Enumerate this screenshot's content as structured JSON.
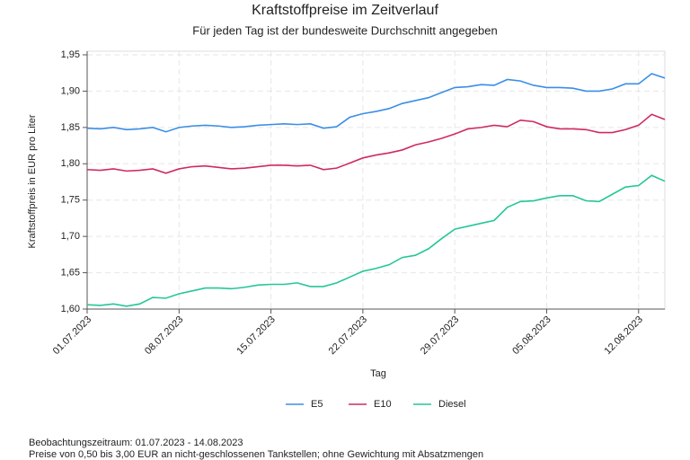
{
  "chart_data": {
    "type": "line",
    "title": "Kraftstoffpreise im Zeitverlauf",
    "subtitle": "Für jeden Tag ist der bundesweite Durchschnitt angegeben",
    "x_label": "Tag",
    "y_label": "Kraftstoffpreis in EUR pro Liter",
    "notes": [
      "Beobachtungszeitraum: 01.07.2023 - 14.08.2023",
      "Preise von 0,50 bis 3,00 EUR an nicht-geschlossenen Tankstellen; ohne Gewichtung mit Absatzmengen"
    ],
    "x": [
      "01.07.2023",
      "02.07.2023",
      "03.07.2023",
      "04.07.2023",
      "05.07.2023",
      "06.07.2023",
      "07.07.2023",
      "08.07.2023",
      "09.07.2023",
      "10.07.2023",
      "11.07.2023",
      "12.07.2023",
      "13.07.2023",
      "14.07.2023",
      "15.07.2023",
      "16.07.2023",
      "17.07.2023",
      "18.07.2023",
      "19.07.2023",
      "20.07.2023",
      "21.07.2023",
      "22.07.2023",
      "23.07.2023",
      "24.07.2023",
      "25.07.2023",
      "26.07.2023",
      "27.07.2023",
      "28.07.2023",
      "29.07.2023",
      "30.07.2023",
      "31.07.2023",
      "01.08.2023",
      "02.08.2023",
      "03.08.2023",
      "04.08.2023",
      "05.08.2023",
      "06.08.2023",
      "07.08.2023",
      "08.08.2023",
      "09.08.2023",
      "10.08.2023",
      "11.08.2023",
      "12.08.2023",
      "13.08.2023",
      "14.08.2023"
    ],
    "xticks": [
      "01.07.2023",
      "08.07.2023",
      "15.07.2023",
      "22.07.2023",
      "29.07.2023",
      "05.08.2023",
      "12.08.2023"
    ],
    "ylim": [
      1.6,
      1.95
    ],
    "yticks": [
      {
        "value": 1.6,
        "label": "1,60"
      },
      {
        "value": 1.65,
        "label": "1,65"
      },
      {
        "value": 1.7,
        "label": "1,70"
      },
      {
        "value": 1.75,
        "label": "1,75"
      },
      {
        "value": 1.8,
        "label": "1,80"
      },
      {
        "value": 1.85,
        "label": "1,85"
      },
      {
        "value": 1.9,
        "label": "1,90"
      },
      {
        "value": 1.95,
        "label": "1,95"
      }
    ],
    "grid": true,
    "legend": "bottom",
    "series": [
      {
        "name": "E5",
        "color": "#3b8ee6",
        "values": [
          1.849,
          1.848,
          1.85,
          1.847,
          1.848,
          1.85,
          1.844,
          1.85,
          1.852,
          1.853,
          1.852,
          1.85,
          1.851,
          1.853,
          1.854,
          1.855,
          1.854,
          1.855,
          1.849,
          1.851,
          1.864,
          1.869,
          1.872,
          1.876,
          1.883,
          1.887,
          1.891,
          1.898,
          1.905,
          1.906,
          1.909,
          1.908,
          1.916,
          1.914,
          1.908,
          1.905,
          1.905,
          1.904,
          1.9,
          1.9,
          1.903,
          1.91,
          1.91,
          1.924,
          1.918
        ]
      },
      {
        "name": "E10",
        "color": "#cf2a62",
        "values": [
          1.792,
          1.791,
          1.793,
          1.79,
          1.791,
          1.793,
          1.787,
          1.793,
          1.796,
          1.797,
          1.795,
          1.793,
          1.794,
          1.796,
          1.798,
          1.798,
          1.797,
          1.798,
          1.792,
          1.794,
          1.801,
          1.808,
          1.812,
          1.815,
          1.819,
          1.826,
          1.83,
          1.835,
          1.841,
          1.848,
          1.85,
          1.853,
          1.851,
          1.86,
          1.858,
          1.851,
          1.848,
          1.848,
          1.847,
          1.843,
          1.843,
          1.847,
          1.853,
          1.868,
          1.861
        ]
      },
      {
        "name": "Diesel",
        "color": "#26c699",
        "values": [
          1.606,
          1.605,
          1.607,
          1.604,
          1.607,
          1.616,
          1.615,
          1.621,
          1.625,
          1.629,
          1.629,
          1.628,
          1.63,
          1.633,
          1.634,
          1.634,
          1.636,
          1.631,
          1.631,
          1.636,
          1.644,
          1.652,
          1.656,
          1.661,
          1.671,
          1.674,
          1.683,
          1.697,
          1.71,
          1.714,
          1.718,
          1.722,
          1.74,
          1.748,
          1.749,
          1.753,
          1.756,
          1.756,
          1.749,
          1.748,
          1.758,
          1.768,
          1.77,
          1.784,
          1.776
        ]
      }
    ]
  }
}
